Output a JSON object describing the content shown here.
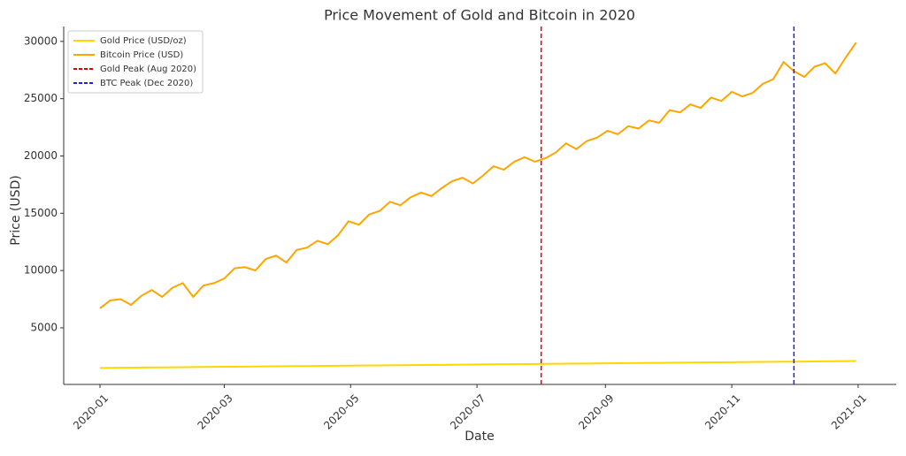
{
  "chart_data": {
    "type": "line",
    "title": "Price Movement of Gold and Bitcoin in 2020",
    "xlabel": "Date",
    "ylabel": "Price (USD)",
    "x": [
      0,
      5,
      10,
      15,
      20,
      25,
      30,
      35,
      40,
      45,
      50,
      55,
      60,
      65,
      70,
      75,
      80,
      85,
      90,
      95,
      100,
      105,
      110,
      115,
      120,
      125,
      130,
      135,
      140,
      145,
      150,
      155,
      160,
      165,
      170,
      175,
      180,
      185,
      190,
      195,
      200,
      205,
      210,
      215,
      220,
      225,
      230,
      235,
      240,
      245,
      250,
      255,
      260,
      265,
      270,
      275,
      280,
      285,
      290,
      295,
      300,
      305,
      310,
      315,
      320,
      325,
      330,
      335,
      340,
      345,
      350,
      355,
      360,
      365
    ],
    "series": [
      {
        "name": "Gold Price (USD/oz)",
        "color": "#FFD700",
        "values": [
          1500,
          1508,
          1516,
          1525,
          1533,
          1541,
          1549,
          1558,
          1566,
          1574,
          1582,
          1590,
          1599,
          1607,
          1615,
          1623,
          1632,
          1640,
          1648,
          1656,
          1664,
          1673,
          1681,
          1689,
          1697,
          1705,
          1714,
          1722,
          1730,
          1738,
          1747,
          1755,
          1763,
          1771,
          1779,
          1788,
          1796,
          1804,
          1812,
          1821,
          1829,
          1837,
          1845,
          1853,
          1862,
          1870,
          1878,
          1886,
          1895,
          1903,
          1911,
          1919,
          1927,
          1936,
          1944,
          1952,
          1960,
          1968,
          1977,
          1985,
          1993,
          2001,
          2010,
          2018,
          2026,
          2034,
          2042,
          2051,
          2059,
          2067,
          2075,
          2084,
          2092,
          2100
        ]
      },
      {
        "name": "Bitcoin Price (USD)",
        "color": "#FFA500",
        "values": [
          6700,
          7400,
          7500,
          7000,
          7800,
          8300,
          7700,
          8500,
          8900,
          7700,
          8700,
          8900,
          9300,
          10200,
          10300,
          10000,
          11000,
          11300,
          10700,
          11800,
          12000,
          12600,
          12300,
          13100,
          14300,
          14000,
          14900,
          15200,
          16000,
          15700,
          16400,
          16800,
          16500,
          17200,
          17800,
          18100,
          17600,
          18300,
          19100,
          18800,
          19500,
          19900,
          19500,
          19800,
          20300,
          21100,
          20600,
          21300,
          21600,
          22200,
          21900,
          22600,
          22400,
          23100,
          22900,
          24000,
          23800,
          24500,
          24200,
          25100,
          24800,
          25600,
          25200,
          25500,
          26300,
          26700,
          28200,
          27400,
          26900,
          27800,
          28100,
          27200,
          28600,
          29900
        ]
      }
    ],
    "reference_lines": [
      {
        "name": "Gold Peak (Aug 2020)",
        "x": 213,
        "color": "#e00000"
      },
      {
        "name": "BTC Peak (Dec 2020)",
        "x": 335,
        "color": "#2020e0"
      }
    ],
    "xlim": [
      -17.5,
      384.4
    ],
    "xticks": [
      {
        "value": 0,
        "label": "2020-01"
      },
      {
        "value": 60,
        "label": "2020-03"
      },
      {
        "value": 121,
        "label": "2020-05"
      },
      {
        "value": 182,
        "label": "2020-07"
      },
      {
        "value": 244,
        "label": "2020-09"
      },
      {
        "value": 305,
        "label": "2020-11"
      },
      {
        "value": 366,
        "label": "2021-01"
      }
    ],
    "ylim": [
      60,
      31300
    ],
    "yticks": [
      5000,
      10000,
      15000,
      20000,
      25000,
      30000
    ],
    "legend": "upper left"
  }
}
